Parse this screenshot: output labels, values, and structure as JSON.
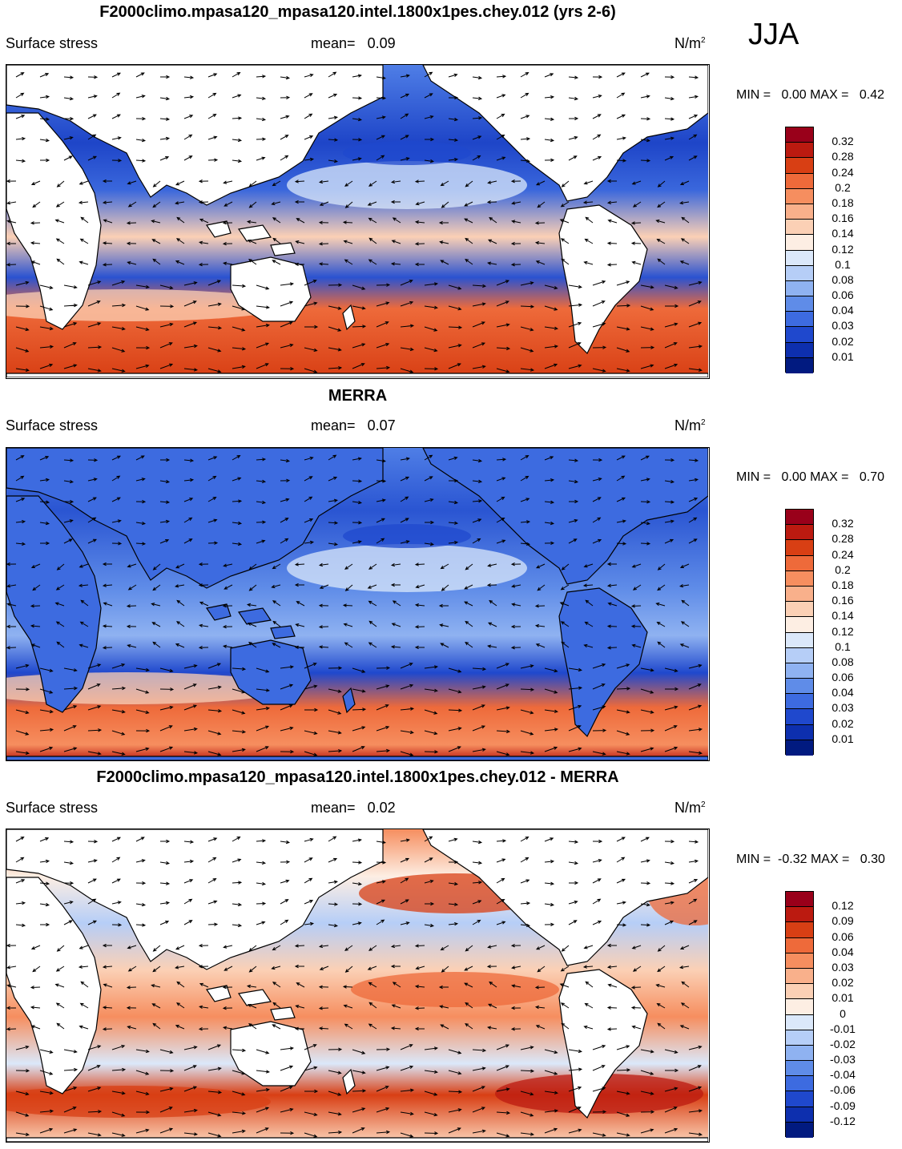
{
  "season": "JJA",
  "panels": [
    {
      "title": "F2000climo.mpasa120_mpasa120.intel.1800x1pes.chey.012 (yrs 2-6)",
      "variable": "Surface stress",
      "mean_label": "mean=",
      "mean_value": "0.09",
      "units": "N/m",
      "units_sup": "2",
      "min_label": "MIN =",
      "min_value": "0.00",
      "max_label": "MAX =",
      "max_value": "0.42",
      "colorbar_labels": [
        "0.32",
        "0.28",
        "0.24",
        "0.2",
        "0.18",
        "0.16",
        "0.14",
        "0.12",
        "0.1",
        "0.08",
        "0.06",
        "0.04",
        "0.03",
        "0.02",
        "0.01"
      ],
      "colorbar_colors": [
        "#99001a",
        "#bb1a10",
        "#d83f14",
        "#ee6a3a",
        "#f68e5f",
        "#f9b08b",
        "#fbd0b5",
        "#fdeee3",
        "#dbe8fa",
        "#b6cef7",
        "#8fb2f1",
        "#5f8ce8",
        "#3d6be0",
        "#1f48cd",
        "#0d2fae",
        "#011a80"
      ],
      "map_style": "model"
    },
    {
      "title": "MERRA",
      "variable": "Surface stress",
      "mean_label": "mean=",
      "mean_value": "0.07",
      "units": "N/m",
      "units_sup": "2",
      "min_label": "MIN =",
      "min_value": "0.00",
      "max_label": "MAX =",
      "max_value": "0.70",
      "colorbar_labels": [
        "0.32",
        "0.28",
        "0.24",
        "0.2",
        "0.18",
        "0.16",
        "0.14",
        "0.12",
        "0.1",
        "0.08",
        "0.06",
        "0.04",
        "0.03",
        "0.02",
        "0.01"
      ],
      "colorbar_colors": [
        "#99001a",
        "#bb1a10",
        "#d83f14",
        "#ee6a3a",
        "#f68e5f",
        "#f9b08b",
        "#fbd0b5",
        "#fdeee3",
        "#dbe8fa",
        "#b6cef7",
        "#8fb2f1",
        "#5f8ce8",
        "#3d6be0",
        "#1f48cd",
        "#0d2fae",
        "#011a80"
      ],
      "map_style": "obs"
    },
    {
      "title": "F2000climo.mpasa120_mpasa120.intel.1800x1pes.chey.012 - MERRA",
      "variable": "Surface stress",
      "mean_label": "mean=",
      "mean_value": "0.02",
      "units": "N/m",
      "units_sup": "2",
      "min_label": "MIN =",
      "min_value": "-0.32",
      "max_label": "MAX =",
      "max_value": "0.30",
      "colorbar_labels": [
        "0.12",
        "0.09",
        "0.06",
        "0.04",
        "0.03",
        "0.02",
        "0.01",
        "0",
        "-0.01",
        "-0.02",
        "-0.03",
        "-0.04",
        "-0.06",
        "-0.09",
        "-0.12"
      ],
      "colorbar_colors": [
        "#99001a",
        "#bb1a10",
        "#d83f14",
        "#ee6a3a",
        "#f68e5f",
        "#f9b08b",
        "#fbd0b5",
        "#fdeee3",
        "#dbe8fa",
        "#b6cef7",
        "#8fb2f1",
        "#5f8ce8",
        "#3d6be0",
        "#1f48cd",
        "#0d2fae",
        "#011a80"
      ],
      "map_style": "diff"
    }
  ]
}
